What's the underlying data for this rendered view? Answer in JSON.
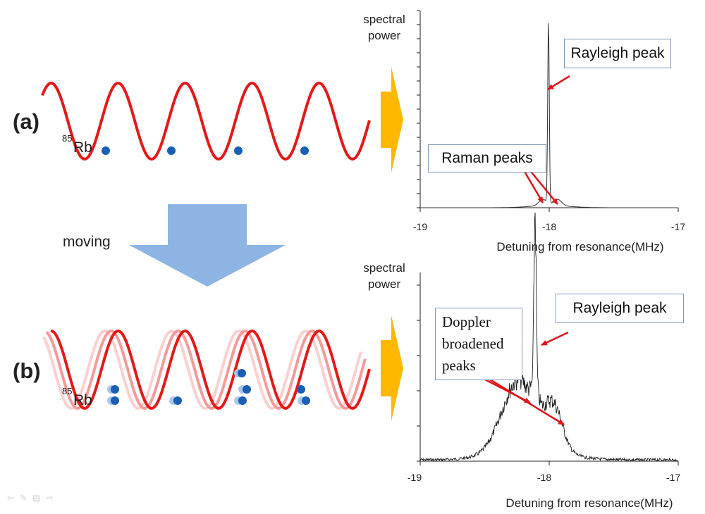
{
  "panel_a": {
    "label": "(a)",
    "atom_label_sup": "85",
    "atom_label": "Rb"
  },
  "panel_b": {
    "label": "(b)",
    "atom_label_sup": "85",
    "atom_label": "Rb"
  },
  "moving_label": "moving",
  "colors": {
    "lattice": "#e51919",
    "lattice_ghost": "#f7b3b3",
    "atom": "#1a5fb4",
    "big_arrow": "#8eb4e3",
    "side_arrow": "#ffb800",
    "annotation_arrow": "#e0141b"
  },
  "chart_data": [
    {
      "type": "line",
      "ylabel_lines": [
        "spectral",
        "power"
      ],
      "xlabel": "Detuning from resonance(MHz)",
      "xlim": [
        -19,
        -17
      ],
      "xticks": [
        "-19",
        "-18",
        "-17"
      ],
      "series": [
        {
          "values_desc": "narrow Rayleigh peak at -18.0 with small Raman sidebands at about -18.05 and -17.93"
        }
      ],
      "annotations": [
        "Rayleigh peak",
        "Raman peaks"
      ]
    },
    {
      "type": "line",
      "ylabel_lines": [
        "spectral",
        "power"
      ],
      "xlabel": "Detuning from resonance(MHz)",
      "xlim": [
        -19,
        -17
      ],
      "xticks": [
        "-19",
        "-18",
        "-17"
      ],
      "series": [
        {
          "values_desc": "sharp Rayleigh peak at about -18.1 on top of broad Doppler broadened hump from about -18.5 to -17.7"
        }
      ],
      "annotations": [
        "Rayleigh peak",
        "Doppler broadened peaks"
      ]
    }
  ],
  "annotations": {
    "rayleigh_a": "Rayleigh peak",
    "raman_a": "Raman peaks",
    "rayleigh_b": "Rayleigh peak",
    "doppler_b": [
      "Doppler",
      "broadened",
      "peaks"
    ]
  }
}
